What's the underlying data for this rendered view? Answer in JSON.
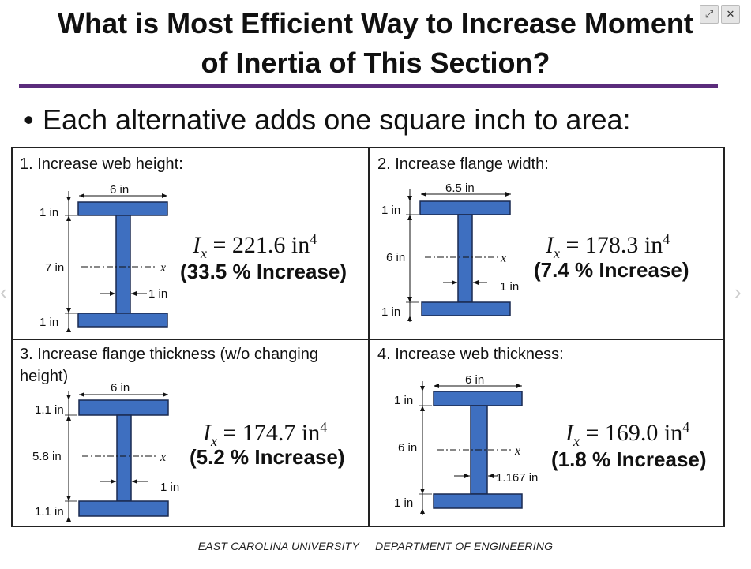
{
  "title": {
    "line1": "What is Most Efficient Way to Increase Moment",
    "line2": "of Inertia of This Section?"
  },
  "bullet": "Each alternative adds one square inch to area:",
  "colors": {
    "steel": "#3e6fc0",
    "steel_edge": "#1a2a50",
    "rule": "#5b2c7c"
  },
  "window_controls": {
    "expand_icon": "⤢",
    "close_icon": "✕"
  },
  "panels": [
    {
      "title": "1. Increase web height:",
      "flange_width": "6 in",
      "top_flange": "1 in",
      "web_height": "7 in",
      "bottom_flange": "1 in",
      "web_thickness": "1 in",
      "axis": "x",
      "ix_symbol": "I",
      "ix_sub": "x",
      "ix_value": "= 221.6 in",
      "ix_exp": "4",
      "increase": "(33.5 % Increase)"
    },
    {
      "title": "2. Increase flange width:",
      "flange_width": "6.5 in",
      "top_flange": "1 in",
      "web_height": "6 in",
      "bottom_flange": "1 in",
      "web_thickness": "1 in",
      "axis": "x",
      "ix_symbol": "I",
      "ix_sub": "x",
      "ix_value": "= 178.3 in",
      "ix_exp": "4",
      "increase": "(7.4 % Increase)"
    },
    {
      "title_line1": "3. Increase flange thickness (w/o changing",
      "title_line2": "height)",
      "flange_width": "6 in",
      "top_flange": "1.1 in",
      "web_height": "5.8 in",
      "bottom_flange": "1.1 in",
      "web_thickness": "1 in",
      "axis": "x",
      "ix_symbol": "I",
      "ix_sub": "x",
      "ix_value": "= 174.7 in",
      "ix_exp": "4",
      "increase": "(5.2 % Increase)"
    },
    {
      "title": "4. Increase web thickness:",
      "flange_width": "6 in",
      "top_flange": "1 in",
      "web_height": "6 in",
      "bottom_flange": "1 in",
      "web_thickness": "1.167 in",
      "axis": "x",
      "ix_symbol": "I",
      "ix_sub": "x",
      "ix_value": "= 169.0 in",
      "ix_exp": "4",
      "increase": "(1.8 % Increase)"
    }
  ],
  "footer": {
    "left": "EAST CAROLINA UNIVERSITY",
    "right": "DEPARTMENT OF ENGINEERING"
  }
}
